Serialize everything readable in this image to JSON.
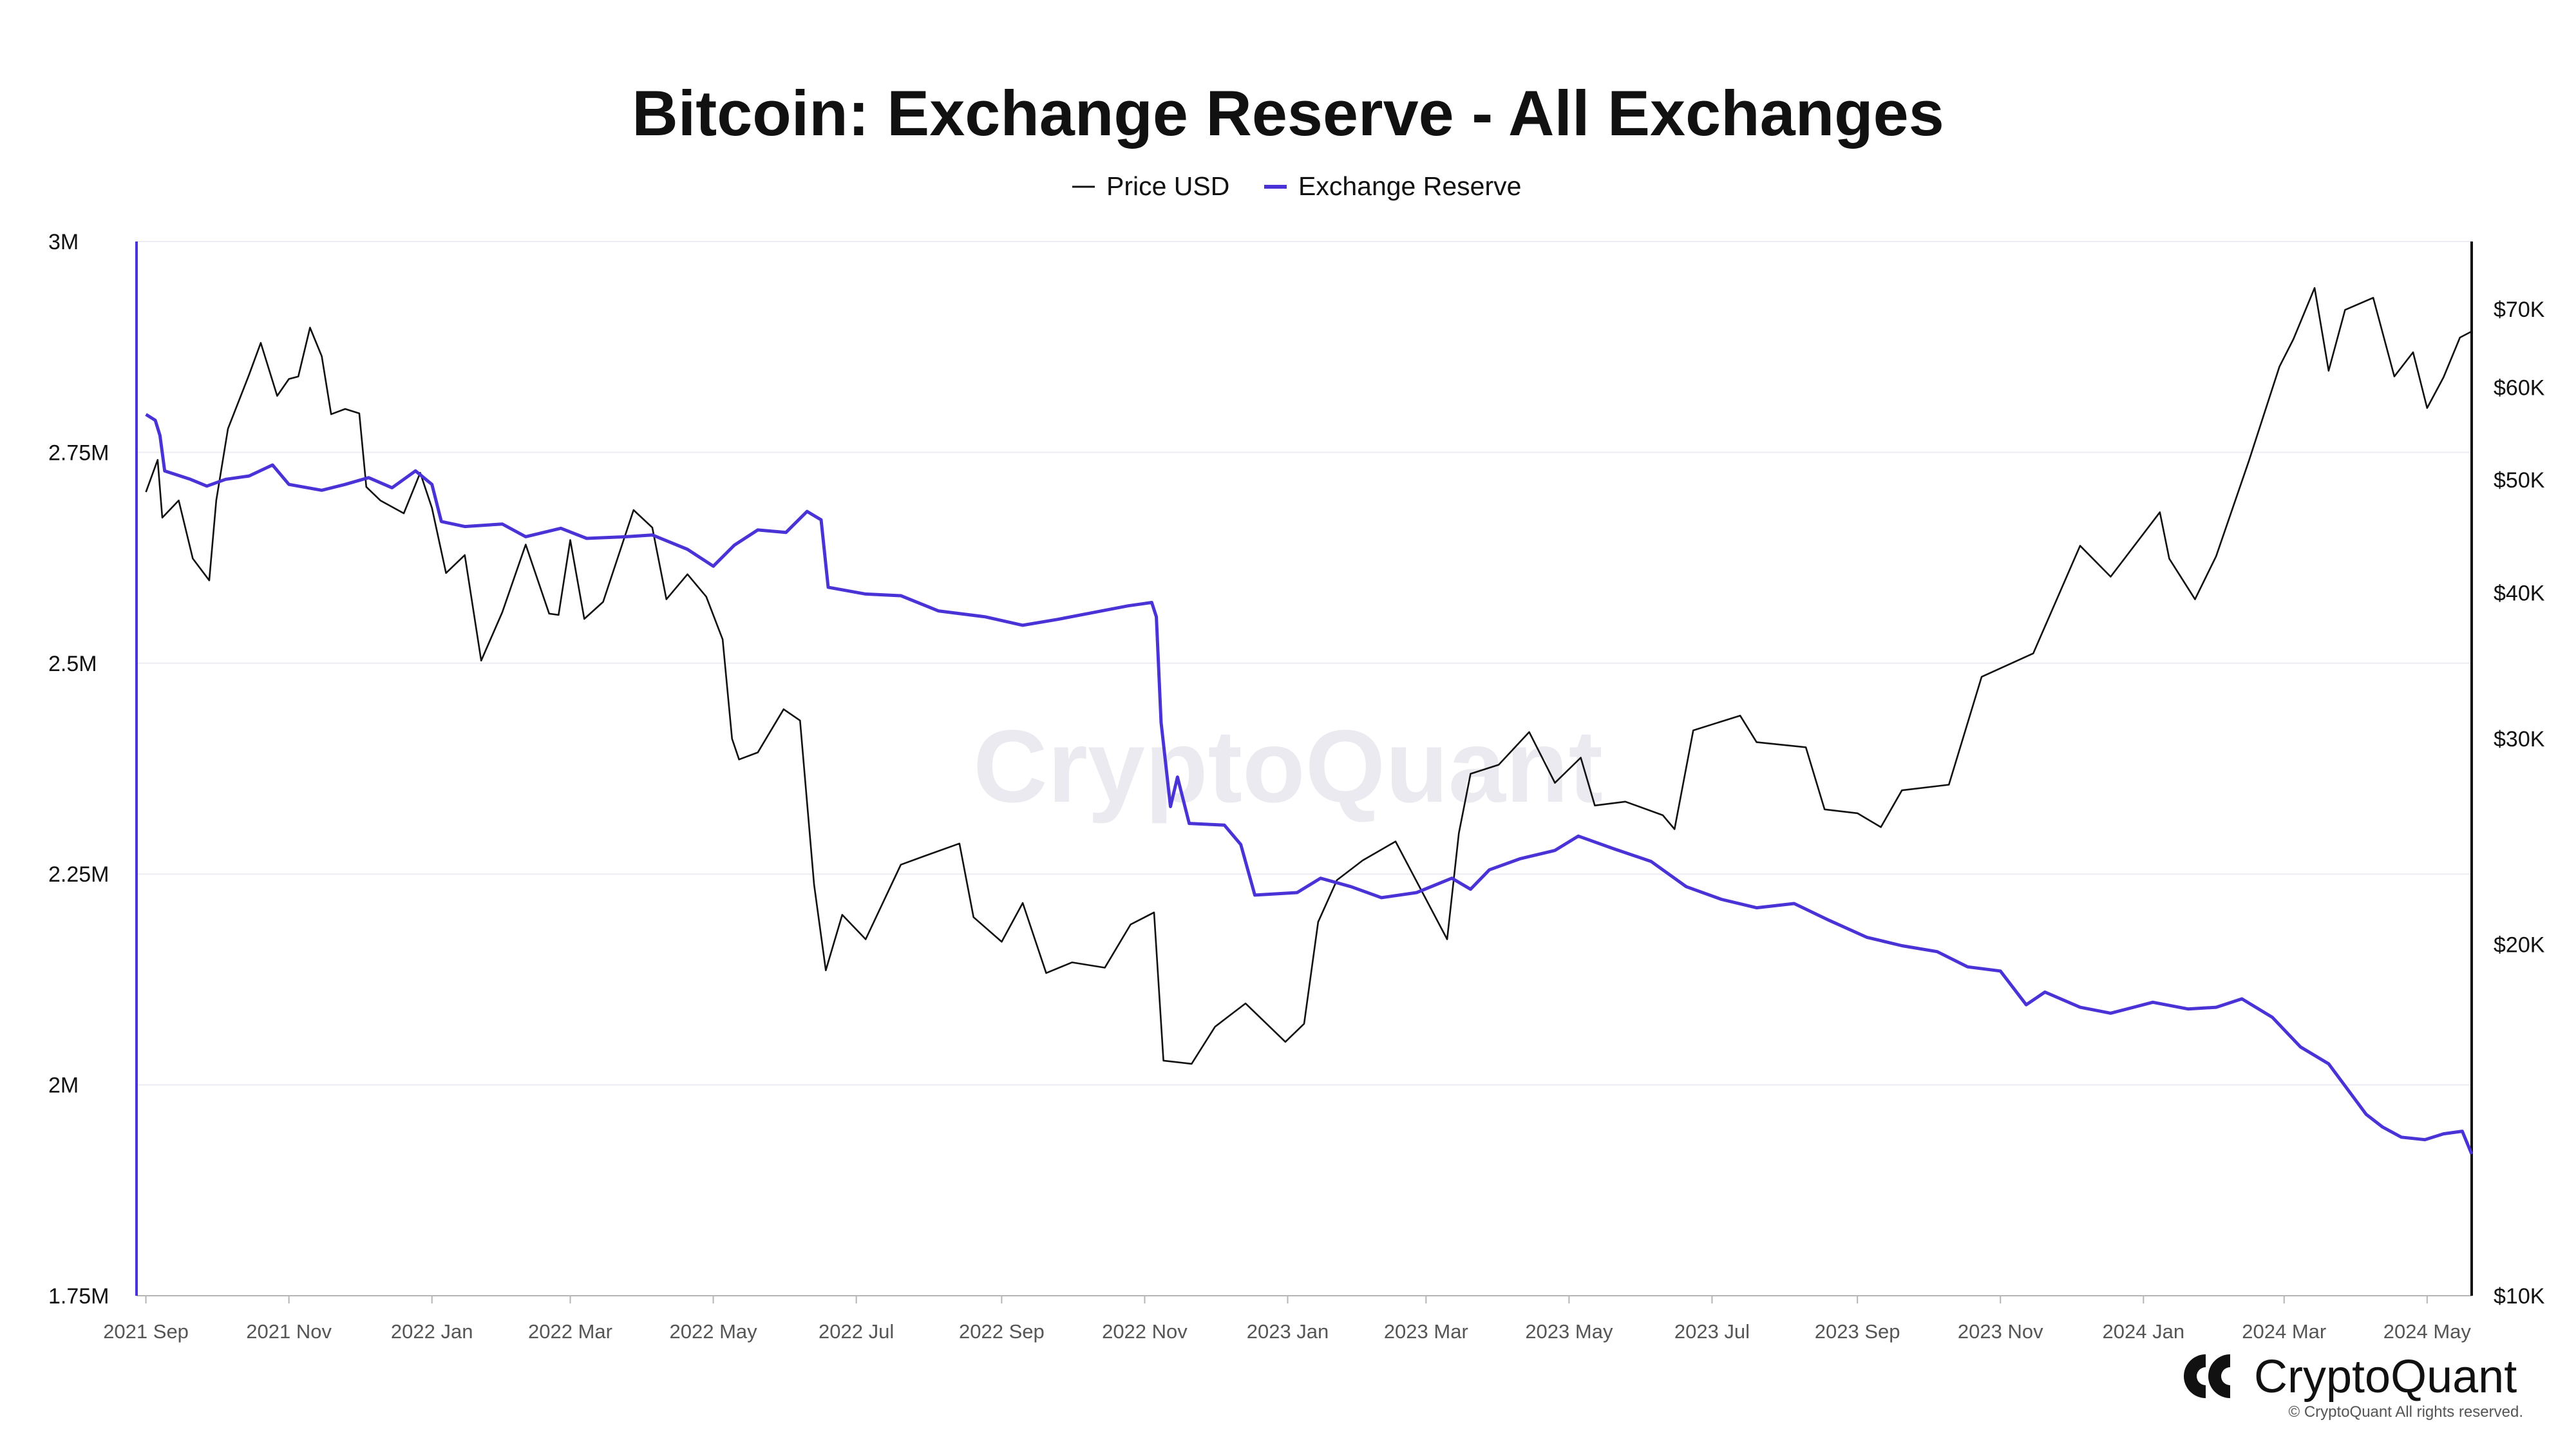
{
  "chart_data": {
    "type": "line",
    "title": "Bitcoin: Exchange Reserve - All Exchanges",
    "legend": {
      "placement": "top-center",
      "entries": [
        {
          "name": "Price USD",
          "color": "#111111"
        },
        {
          "name": "Exchange Reserve",
          "color": "#4a33d6"
        }
      ]
    },
    "grid": true,
    "x_axis": {
      "range": [
        "2021-08-28",
        "2024-05-20"
      ],
      "ticks": [
        {
          "date": "2021-09-01",
          "label": "2021 Sep"
        },
        {
          "date": "2021-11-01",
          "label": "2021 Nov"
        },
        {
          "date": "2022-01-01",
          "label": "2022 Jan"
        },
        {
          "date": "2022-03-01",
          "label": "2022 Mar"
        },
        {
          "date": "2022-05-01",
          "label": "2022 May"
        },
        {
          "date": "2022-07-01",
          "label": "2022 Jul"
        },
        {
          "date": "2022-09-01",
          "label": "2022 Sep"
        },
        {
          "date": "2022-11-01",
          "label": "2022 Nov"
        },
        {
          "date": "2023-01-01",
          "label": "2023 Jan"
        },
        {
          "date": "2023-03-01",
          "label": "2023 Mar"
        },
        {
          "date": "2023-05-01",
          "label": "2023 May"
        },
        {
          "date": "2023-07-01",
          "label": "2023 Jul"
        },
        {
          "date": "2023-09-01",
          "label": "2023 Sep"
        },
        {
          "date": "2023-11-01",
          "label": "2023 Nov"
        },
        {
          "date": "2024-01-01",
          "label": "2024 Jan"
        },
        {
          "date": "2024-03-01",
          "label": "2024 Mar"
        },
        {
          "date": "2024-05-01",
          "label": "2024 May"
        }
      ]
    },
    "y_left": {
      "series": "Exchange Reserve",
      "scale": "linear",
      "range": [
        1750000,
        3000000
      ],
      "ticks": [
        {
          "value": 3000000,
          "label": "3M"
        },
        {
          "value": 2750000,
          "label": "2.75M"
        },
        {
          "value": 2500000,
          "label": "2.5M"
        },
        {
          "value": 2250000,
          "label": "2.25M"
        },
        {
          "value": 2000000,
          "label": "2M"
        },
        {
          "value": 1750000,
          "label": "1.75M"
        }
      ]
    },
    "y_right": {
      "series": "Price USD",
      "scale": "log",
      "range": [
        10000,
        80000
      ],
      "ticks": [
        {
          "value": 70000,
          "label": "$70K"
        },
        {
          "value": 60000,
          "label": "$60K"
        },
        {
          "value": 50000,
          "label": "$50K"
        },
        {
          "value": 40000,
          "label": "$40K"
        },
        {
          "value": 30000,
          "label": "$30K"
        },
        {
          "value": 20000,
          "label": "$20K"
        },
        {
          "value": 10000,
          "label": "$10K"
        }
      ]
    },
    "series": [
      {
        "name": "Price USD",
        "axis": "right",
        "color": "#111111",
        "points": [
          [
            "2021-09-01",
            48800
          ],
          [
            "2021-09-06",
            52000
          ],
          [
            "2021-09-08",
            46400
          ],
          [
            "2021-09-15",
            48000
          ],
          [
            "2021-09-21",
            42800
          ],
          [
            "2021-09-28",
            41000
          ],
          [
            "2021-10-01",
            48000
          ],
          [
            "2021-10-06",
            55300
          ],
          [
            "2021-10-15",
            61500
          ],
          [
            "2021-10-20",
            65500
          ],
          [
            "2021-10-27",
            59000
          ],
          [
            "2021-11-01",
            61000
          ],
          [
            "2021-11-05",
            61300
          ],
          [
            "2021-11-10",
            67500
          ],
          [
            "2021-11-15",
            63800
          ],
          [
            "2021-11-19",
            56900
          ],
          [
            "2021-11-25",
            57500
          ],
          [
            "2021-12-01",
            57000
          ],
          [
            "2021-12-04",
            49300
          ],
          [
            "2021-12-10",
            48000
          ],
          [
            "2021-12-20",
            46800
          ],
          [
            "2021-12-27",
            50700
          ],
          [
            "2022-01-01",
            47300
          ],
          [
            "2022-01-07",
            41600
          ],
          [
            "2022-01-15",
            43100
          ],
          [
            "2022-01-22",
            35000
          ],
          [
            "2022-01-31",
            38500
          ],
          [
            "2022-02-10",
            44000
          ],
          [
            "2022-02-20",
            38400
          ],
          [
            "2022-02-24",
            38300
          ],
          [
            "2022-03-01",
            44400
          ],
          [
            "2022-03-07",
            38000
          ],
          [
            "2022-03-15",
            39300
          ],
          [
            "2022-03-28",
            47100
          ],
          [
            "2022-04-05",
            45500
          ],
          [
            "2022-04-11",
            39500
          ],
          [
            "2022-04-20",
            41500
          ],
          [
            "2022-04-28",
            39700
          ],
          [
            "2022-05-05",
            36500
          ],
          [
            "2022-05-09",
            30000
          ],
          [
            "2022-05-12",
            28800
          ],
          [
            "2022-05-20",
            29200
          ],
          [
            "2022-05-31",
            31800
          ],
          [
            "2022-06-07",
            31100
          ],
          [
            "2022-06-13",
            22500
          ],
          [
            "2022-06-18",
            19000
          ],
          [
            "2022-06-25",
            21200
          ],
          [
            "2022-07-05",
            20200
          ],
          [
            "2022-07-20",
            23400
          ],
          [
            "2022-07-30",
            23800
          ],
          [
            "2022-08-14",
            24400
          ],
          [
            "2022-08-20",
            21100
          ],
          [
            "2022-09-01",
            20100
          ],
          [
            "2022-09-10",
            21700
          ],
          [
            "2022-09-20",
            18900
          ],
          [
            "2022-10-01",
            19300
          ],
          [
            "2022-10-15",
            19100
          ],
          [
            "2022-10-26",
            20800
          ],
          [
            "2022-11-05",
            21300
          ],
          [
            "2022-11-09",
            15900
          ],
          [
            "2022-11-21",
            15800
          ],
          [
            "2022-12-01",
            17000
          ],
          [
            "2022-12-14",
            17800
          ],
          [
            "2022-12-31",
            16500
          ],
          [
            "2023-01-08",
            17100
          ],
          [
            "2023-01-14",
            20900
          ],
          [
            "2023-01-22",
            22700
          ],
          [
            "2023-02-02",
            23600
          ],
          [
            "2023-02-16",
            24500
          ],
          [
            "2023-03-10",
            20200
          ],
          [
            "2023-03-15",
            24900
          ],
          [
            "2023-03-20",
            28000
          ],
          [
            "2023-04-01",
            28500
          ],
          [
            "2023-04-14",
            30400
          ],
          [
            "2023-04-25",
            27500
          ],
          [
            "2023-05-06",
            28900
          ],
          [
            "2023-05-12",
            26300
          ],
          [
            "2023-05-25",
            26500
          ],
          [
            "2023-06-10",
            25800
          ],
          [
            "2023-06-15",
            25100
          ],
          [
            "2023-06-23",
            30500
          ],
          [
            "2023-07-13",
            31400
          ],
          [
            "2023-07-20",
            29800
          ],
          [
            "2023-08-10",
            29500
          ],
          [
            "2023-08-18",
            26100
          ],
          [
            "2023-09-01",
            25900
          ],
          [
            "2023-09-11",
            25200
          ],
          [
            "2023-09-20",
            27100
          ],
          [
            "2023-10-10",
            27400
          ],
          [
            "2023-10-24",
            33900
          ],
          [
            "2023-11-15",
            35500
          ],
          [
            "2023-12-05",
            43900
          ],
          [
            "2023-12-18",
            41300
          ],
          [
            "2024-01-08",
            46900
          ],
          [
            "2024-01-12",
            42800
          ],
          [
            "2024-01-23",
            39500
          ],
          [
            "2024-02-01",
            43000
          ],
          [
            "2024-02-15",
            51900
          ],
          [
            "2024-02-28",
            62500
          ],
          [
            "2024-03-05",
            66000
          ],
          [
            "2024-03-14",
            73000
          ],
          [
            "2024-03-20",
            62000
          ],
          [
            "2024-03-27",
            69900
          ],
          [
            "2024-04-08",
            71600
          ],
          [
            "2024-04-17",
            61300
          ],
          [
            "2024-04-25",
            64300
          ],
          [
            "2024-05-01",
            57600
          ],
          [
            "2024-05-08",
            61200
          ],
          [
            "2024-05-15",
            66200
          ],
          [
            "2024-05-20",
            67000
          ]
        ]
      },
      {
        "name": "Exchange Reserve",
        "axis": "left",
        "color": "#4a33d6",
        "points": [
          [
            "2021-09-01",
            2795000
          ],
          [
            "2021-09-05",
            2788000
          ],
          [
            "2021-09-07",
            2770000
          ],
          [
            "2021-09-09",
            2728000
          ],
          [
            "2021-09-20",
            2718000
          ],
          [
            "2021-09-27",
            2710000
          ],
          [
            "2021-10-05",
            2718000
          ],
          [
            "2021-10-15",
            2722000
          ],
          [
            "2021-10-25",
            2735000
          ],
          [
            "2021-11-01",
            2712000
          ],
          [
            "2021-11-15",
            2705000
          ],
          [
            "2021-11-25",
            2712000
          ],
          [
            "2021-12-05",
            2720000
          ],
          [
            "2021-12-15",
            2708000
          ],
          [
            "2021-12-25",
            2728000
          ],
          [
            "2022-01-01",
            2712000
          ],
          [
            "2022-01-05",
            2668000
          ],
          [
            "2022-01-15",
            2662000
          ],
          [
            "2022-01-31",
            2665000
          ],
          [
            "2022-02-10",
            2650000
          ],
          [
            "2022-02-25",
            2660000
          ],
          [
            "2022-03-08",
            2648000
          ],
          [
            "2022-03-25",
            2650000
          ],
          [
            "2022-04-05",
            2652000
          ],
          [
            "2022-04-20",
            2635000
          ],
          [
            "2022-05-01",
            2615000
          ],
          [
            "2022-05-10",
            2640000
          ],
          [
            "2022-05-20",
            2658000
          ],
          [
            "2022-06-01",
            2655000
          ],
          [
            "2022-06-10",
            2680000
          ],
          [
            "2022-06-16",
            2670000
          ],
          [
            "2022-06-19",
            2590000
          ],
          [
            "2022-07-05",
            2582000
          ],
          [
            "2022-07-20",
            2580000
          ],
          [
            "2022-08-05",
            2562000
          ],
          [
            "2022-08-25",
            2555000
          ],
          [
            "2022-09-10",
            2545000
          ],
          [
            "2022-09-25",
            2552000
          ],
          [
            "2022-10-10",
            2560000
          ],
          [
            "2022-10-25",
            2568000
          ],
          [
            "2022-11-04",
            2572000
          ],
          [
            "2022-11-06",
            2555000
          ],
          [
            "2022-11-08",
            2430000
          ],
          [
            "2022-11-12",
            2330000
          ],
          [
            "2022-11-15",
            2365000
          ],
          [
            "2022-11-20",
            2310000
          ],
          [
            "2022-12-05",
            2308000
          ],
          [
            "2022-12-12",
            2285000
          ],
          [
            "2022-12-18",
            2225000
          ],
          [
            "2023-01-05",
            2228000
          ],
          [
            "2023-01-15",
            2245000
          ],
          [
            "2023-01-28",
            2235000
          ],
          [
            "2023-02-10",
            2222000
          ],
          [
            "2023-02-25",
            2228000
          ],
          [
            "2023-03-12",
            2245000
          ],
          [
            "2023-03-20",
            2232000
          ],
          [
            "2023-03-28",
            2255000
          ],
          [
            "2023-04-10",
            2268000
          ],
          [
            "2023-04-25",
            2278000
          ],
          [
            "2023-05-05",
            2295000
          ],
          [
            "2023-05-20",
            2280000
          ],
          [
            "2023-06-05",
            2265000
          ],
          [
            "2023-06-20",
            2235000
          ],
          [
            "2023-07-05",
            2220000
          ],
          [
            "2023-07-20",
            2210000
          ],
          [
            "2023-08-05",
            2215000
          ],
          [
            "2023-08-20",
            2195000
          ],
          [
            "2023-09-05",
            2175000
          ],
          [
            "2023-09-20",
            2165000
          ],
          [
            "2023-10-05",
            2158000
          ],
          [
            "2023-10-18",
            2140000
          ],
          [
            "2023-11-01",
            2135000
          ],
          [
            "2023-11-12",
            2095000
          ],
          [
            "2023-11-20",
            2110000
          ],
          [
            "2023-12-05",
            2092000
          ],
          [
            "2023-12-18",
            2085000
          ],
          [
            "2024-01-05",
            2098000
          ],
          [
            "2024-01-20",
            2090000
          ],
          [
            "2024-02-01",
            2092000
          ],
          [
            "2024-02-12",
            2102000
          ],
          [
            "2024-02-25",
            2080000
          ],
          [
            "2024-03-08",
            2045000
          ],
          [
            "2024-03-20",
            2025000
          ],
          [
            "2024-04-05",
            1965000
          ],
          [
            "2024-04-12",
            1950000
          ],
          [
            "2024-04-20",
            1938000
          ],
          [
            "2024-04-30",
            1935000
          ],
          [
            "2024-05-08",
            1942000
          ],
          [
            "2024-05-16",
            1945000
          ],
          [
            "2024-05-20",
            1918000
          ]
        ]
      }
    ],
    "watermark": "CryptoQuant"
  },
  "branding": {
    "logo_text": "CryptoQuant",
    "copyright": "© CryptoQuant All rights reserved."
  },
  "colors": {
    "price": "#111111",
    "reserve": "#4a33d6",
    "grid": "#ececf2",
    "watermark": "#d9d9e3"
  }
}
